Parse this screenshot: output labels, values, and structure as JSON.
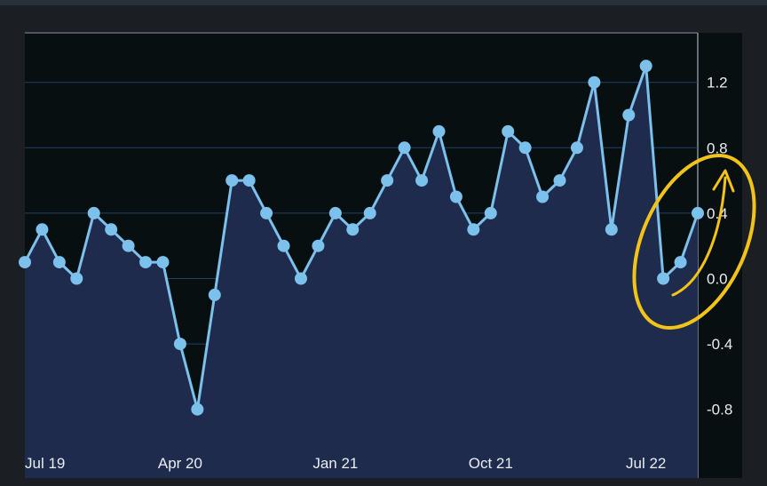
{
  "chart_data": {
    "type": "area",
    "title": "",
    "xlabel": "",
    "ylabel": "",
    "ylim": [
      -1.0,
      1.45
    ],
    "y_ticks": [
      {
        "value": 1.2,
        "label": "1.2"
      },
      {
        "value": 0.8,
        "label": "0.8"
      },
      {
        "value": 0.4,
        "label": "0.4"
      },
      {
        "value": 0.0,
        "label": "0.0"
      },
      {
        "value": -0.4,
        "label": "-0.4"
      },
      {
        "value": -0.8,
        "label": "-0.8"
      }
    ],
    "x_ticks": [
      {
        "label": "Jul 19",
        "index": 0
      },
      {
        "label": "Apr 20",
        "index": 9
      },
      {
        "label": "Jan 21",
        "index": 18
      },
      {
        "label": "Oct 21",
        "index": 27
      },
      {
        "label": "Jul 22",
        "index": 36
      }
    ],
    "grid": true,
    "y_axis_position": "right",
    "colors": {
      "background": "#080f10",
      "frame": "#1b1f24",
      "line": "#7cc0ec",
      "fill": "#1e2b4c",
      "grid": "#23406a",
      "annotation": "#f2c419"
    },
    "annotation": "hand-drawn yellow ellipse with upward arrow around the last four points",
    "series": [
      {
        "values": [
          0.1,
          0.3,
          0.1,
          0.0,
          0.4,
          0.3,
          0.2,
          0.1,
          0.1,
          -0.4,
          -0.8,
          -0.1,
          0.6,
          0.6,
          0.4,
          0.2,
          0.0,
          0.2,
          0.4,
          0.3,
          0.4,
          0.6,
          0.8,
          0.6,
          0.9,
          0.5,
          0.3,
          0.4,
          0.9,
          0.8,
          0.5,
          0.6,
          0.8,
          1.2,
          0.3,
          1.0,
          1.3,
          0.0,
          0.1,
          0.4
        ]
      }
    ]
  }
}
